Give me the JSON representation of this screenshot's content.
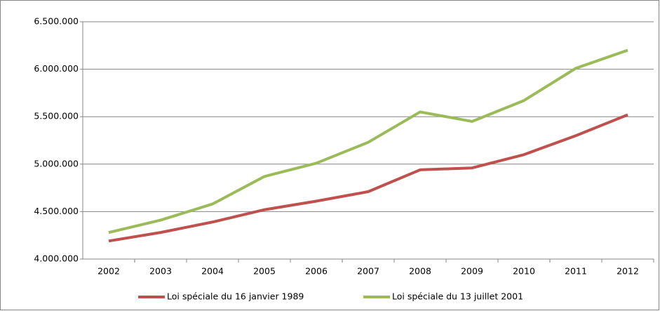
{
  "chart_data": {
    "type": "line",
    "categories": [
      "2002",
      "2003",
      "2004",
      "2005",
      "2006",
      "2007",
      "2008",
      "2009",
      "2010",
      "2011",
      "2012"
    ],
    "series": [
      {
        "name": "Loi spéciale du 16 janvier 1989",
        "color": "#c0504d",
        "values": [
          4190000,
          4280000,
          4390000,
          4520000,
          4610000,
          4710000,
          4940000,
          4960000,
          5100000,
          5300000,
          5520000
        ]
      },
      {
        "name": "Loi spéciale du 13 juillet 2001",
        "color": "#9bbb59",
        "values": [
          4280000,
          4410000,
          4580000,
          4870000,
          5010000,
          5230000,
          5550000,
          5450000,
          5670000,
          6010000,
          6200000
        ]
      }
    ],
    "ylim": [
      4000000,
      6500000
    ],
    "yticks": [
      {
        "value": 4000000,
        "label": "4.000.000"
      },
      {
        "value": 4500000,
        "label": "4.500.000"
      },
      {
        "value": 5000000,
        "label": "5.000.000"
      },
      {
        "value": 5500000,
        "label": "5.500.000"
      },
      {
        "value": 6000000,
        "label": "6.000.000"
      },
      {
        "value": 6500000,
        "label": "6.500.000"
      }
    ],
    "grid": true,
    "legend": "bottom"
  }
}
